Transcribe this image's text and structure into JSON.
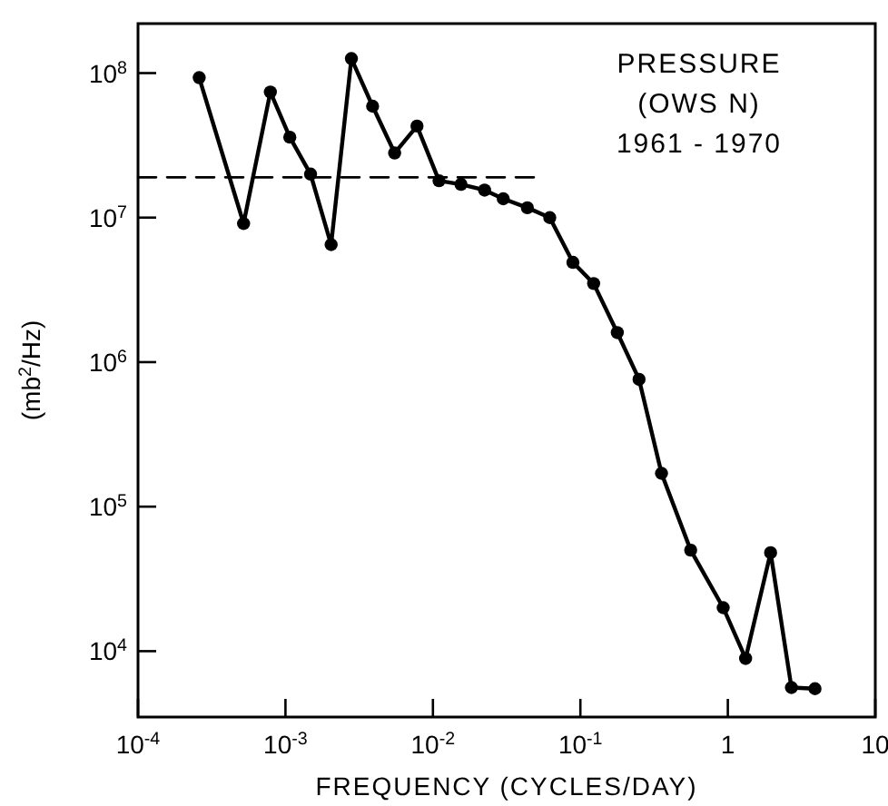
{
  "chart_data": {
    "type": "line",
    "xlabel": "FREQUENCY (CYCLES/DAY)",
    "ylabel": "(mb$^{2}$/Hz)",
    "log": "xy",
    "marker": "circle",
    "line_style": "solid",
    "grid": false,
    "annotations": [
      "PRESSURE",
      "(OWS N)",
      "1961 - 1970"
    ],
    "xlim": [
      0.0001,
      10
    ],
    "ylim": [
      3500,
      220000000
    ],
    "xticks": [
      {
        "value": 0.0001,
        "label": "10$^{-4}$"
      },
      {
        "value": 0.001,
        "label": "10$^{-3}$"
      },
      {
        "value": 0.01,
        "label": "10$^{-2}$"
      },
      {
        "value": 0.1,
        "label": "10$^{-1}$"
      },
      1,
      10
    ],
    "yticks": [
      {
        "value": 10000,
        "label": "10$^{4}$"
      },
      {
        "value": 100000,
        "label": "10$^{5}$"
      },
      {
        "value": 1000000,
        "label": "10$^{6}$"
      },
      {
        "value": 10000000,
        "label": "10$^{7}$"
      },
      {
        "value": 100000000,
        "label": "10$^{8}$"
      }
    ],
    "series": [
      {
        "color": "#000000",
        "x": [
          0.00026,
          0.00052,
          0.00079,
          0.00107,
          0.00148,
          0.00204,
          0.0028,
          0.0039,
          0.0055,
          0.0078,
          0.011,
          0.0155,
          0.0224,
          0.03,
          0.0437,
          0.062,
          0.089,
          0.123,
          0.178,
          0.25,
          0.355,
          0.56,
          0.93,
          1.32,
          1.95,
          2.7,
          3.9
        ],
        "values": [
          93000000,
          9100000,
          74000000,
          36000000,
          20000000,
          6500000,
          126000000,
          59000000,
          28000000,
          43000000,
          18000000,
          17000000,
          15500000,
          13500000,
          11700000,
          10000000,
          4900000,
          3500000,
          1600000,
          760000,
          170000,
          50000,
          20000,
          8900,
          48000,
          5600,
          5500
        ]
      },
      {
        "type": "line",
        "color": "#000000",
        "line_style": "dashed",
        "marker": "none",
        "x": [
          0.0001,
          0.05
        ],
        "values": [
          19000000,
          19000000
        ]
      }
    ]
  }
}
